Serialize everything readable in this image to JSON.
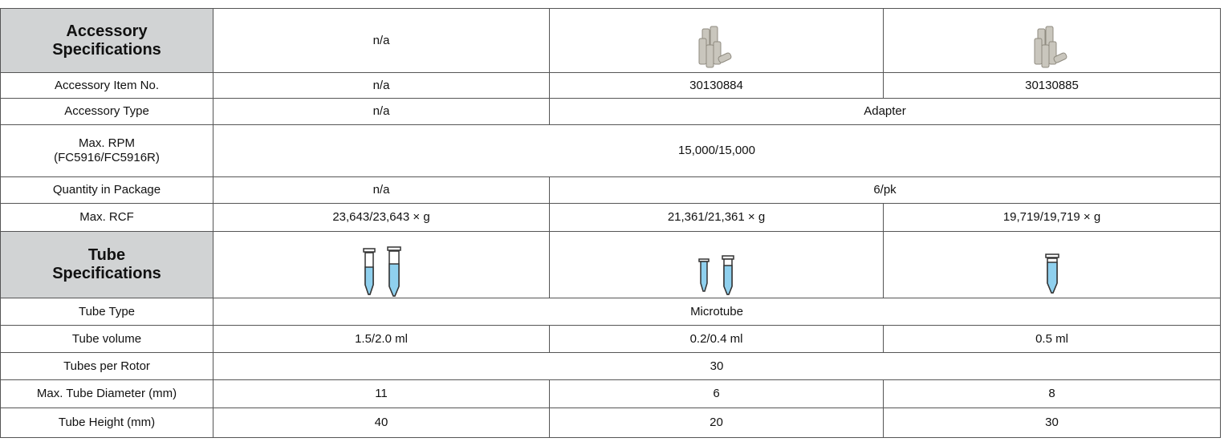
{
  "table": {
    "rows": [
      [
        "Accessory\nSpecifications",
        "n/a"
      ],
      [
        "Accessory Item No.",
        "n/a",
        "30130884",
        "30130885"
      ],
      [
        "Accessory Type",
        "n/a",
        "Adapter"
      ],
      [
        "Max. RPM\n(FC5916/FC5916R)",
        "15,000/15,000"
      ],
      [
        "Quantity in Package",
        "n/a",
        "6/pk"
      ],
      [
        "Max. RCF",
        "23,643/23,643 × g",
        "21,361/21,361 × g",
        "19,719/19,719 × g"
      ],
      [
        "Tube\nSpecifications"
      ],
      [
        "Tube Type",
        "Microtube"
      ],
      [
        "Tube volume",
        "1.5/2.0 ml",
        "0.2/0.4 ml",
        "0.5 ml"
      ],
      [
        "Tubes per Rotor",
        "30"
      ],
      [
        "Max. Tube Diameter (mm)",
        "11",
        "6",
        "8"
      ],
      [
        "Tube Height (mm)",
        "40",
        "20",
        "30"
      ]
    ]
  }
}
